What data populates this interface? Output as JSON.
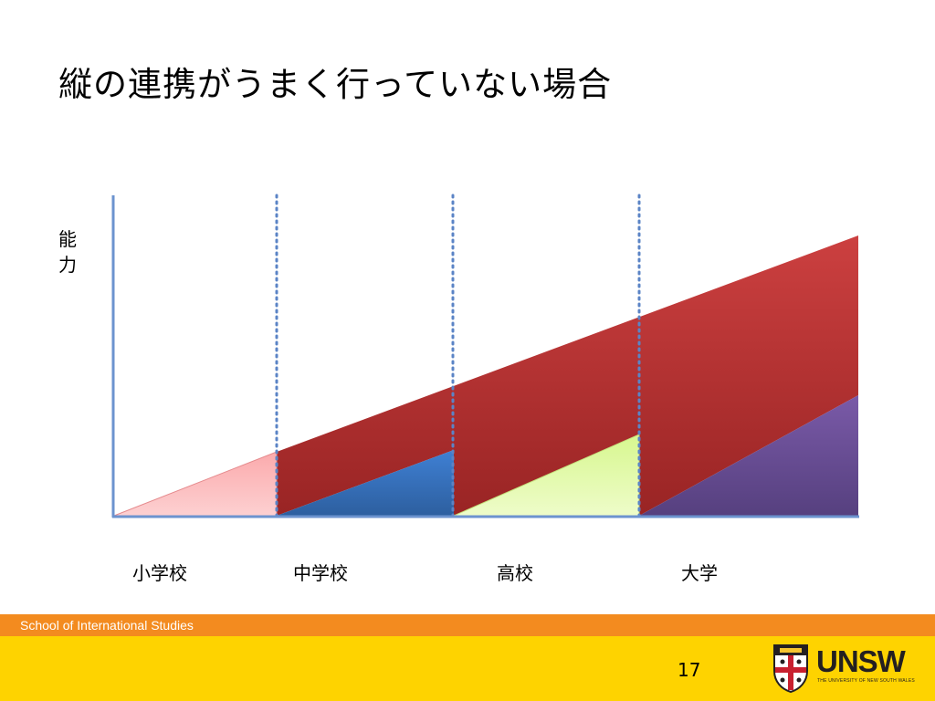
{
  "slide": {
    "title": "縦の連携がうまく行っていない場合",
    "y_label_chars": [
      "能",
      "力"
    ],
    "page_number": "17"
  },
  "stages": [
    {
      "label": "小学校",
      "color": "#fbaaac"
    },
    {
      "label": "中学校",
      "color": "#3a74c4"
    },
    {
      "label": "高校",
      "color": "#e2fcac"
    },
    {
      "label": "大学",
      "color": "#6a4f9a"
    }
  ],
  "band_color": "#ab2b2b",
  "axis_color": "#6c93cf",
  "footer": {
    "school_name": "School of International Studies",
    "orange": "#f38b1f",
    "yellow": "#fed300"
  },
  "logo": {
    "crest_icon": "unsw-crest-icon",
    "word": "UNSW",
    "subtitle": "THE UNIVERSITY OF NEW SOUTH WALES"
  }
}
